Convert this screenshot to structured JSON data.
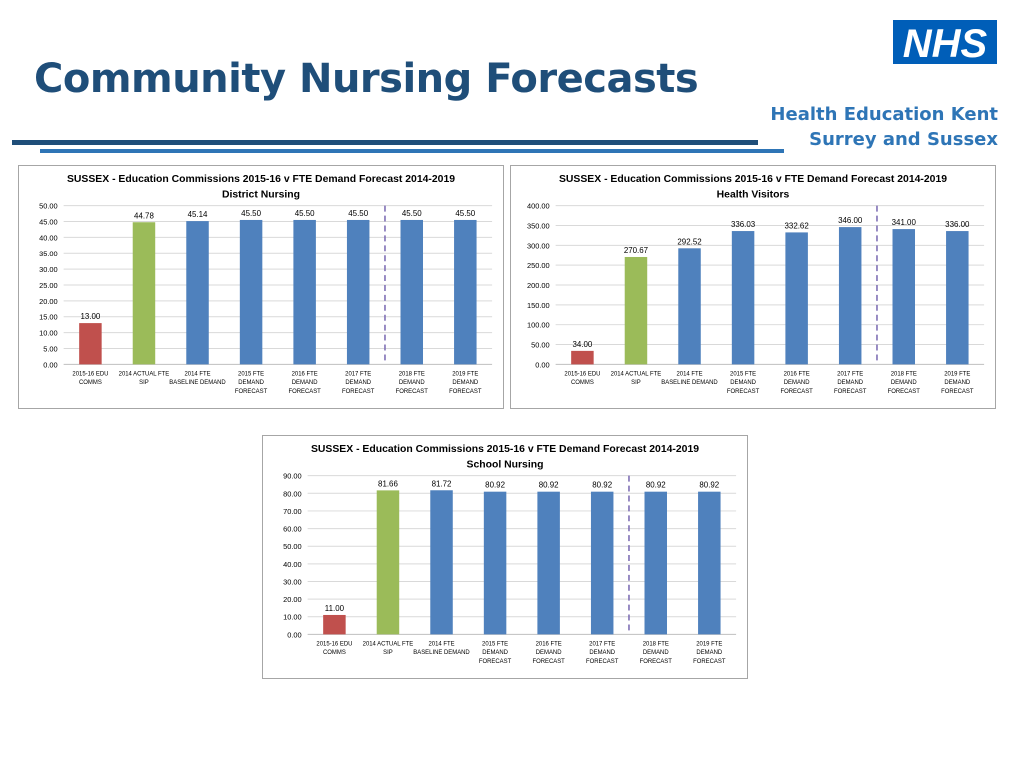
{
  "page": {
    "title": "Community Nursing Forecasts",
    "logo_text": "NHS",
    "org_line1": "Health Education Kent",
    "org_line2": "Surrey and Sussex",
    "colors": {
      "title": "#1f4e79",
      "org": "#2e75b6",
      "logo": "#005eb8",
      "rule_dark": "#1f4e79",
      "rule_light": "#2e75b6"
    }
  },
  "chart_data": [
    {
      "type": "bar",
      "title": "SUSSEX - Education Commissions 2015-16 v FTE Demand Forecast 2014-2019",
      "subtitle": "District Nursing",
      "categories": [
        [
          "2015-16 EDU",
          "COMMS"
        ],
        [
          "2014 ACTUAL FTE",
          "SIP"
        ],
        [
          "2014 FTE",
          "BASELINE DEMAND"
        ],
        [
          "2015 FTE",
          "DEMAND",
          "FORECAST"
        ],
        [
          "2016 FTE",
          "DEMAND",
          "FORECAST"
        ],
        [
          "2017 FTE",
          "DEMAND",
          "FORECAST"
        ],
        [
          "2018 FTE",
          "DEMAND",
          "FORECAST"
        ],
        [
          "2019 FTE",
          "DEMAND",
          "FORECAST"
        ]
      ],
      "values": [
        13.0,
        44.78,
        45.14,
        45.5,
        45.5,
        45.5,
        45.5,
        45.5
      ],
      "value_labels": [
        "13.00",
        "44.78",
        "45.14",
        "45.50",
        "45.50",
        "45.50",
        "45.50",
        "45.50"
      ],
      "colors": [
        "#c0504d",
        "#9bbb59",
        "#4f81bd",
        "#4f81bd",
        "#4f81bd",
        "#4f81bd",
        "#4f81bd",
        "#4f81bd"
      ],
      "ylim": [
        0,
        50
      ],
      "yticks": [
        "0.00",
        "5.00",
        "10.00",
        "15.00",
        "20.00",
        "25.00",
        "30.00",
        "35.00",
        "40.00",
        "45.00",
        "50.00"
      ],
      "ytick_values": [
        0,
        5,
        10,
        15,
        20,
        25,
        30,
        35,
        40,
        45,
        50
      ],
      "divider_after_index": 5,
      "divider_color": "#7f6fb5",
      "grid": true,
      "legend": "none"
    },
    {
      "type": "bar",
      "title": "SUSSEX - Education Commissions 2015-16 v FTE Demand Forecast 2014-2019",
      "subtitle": "Health Visitors",
      "categories": [
        [
          "2015-16 EDU",
          "COMMS"
        ],
        [
          "2014 ACTUAL FTE",
          "SIP"
        ],
        [
          "2014 FTE",
          "BASELINE DEMAND"
        ],
        [
          "2015 FTE",
          "DEMAND",
          "FORECAST"
        ],
        [
          "2016 FTE",
          "DEMAND",
          "FORECAST"
        ],
        [
          "2017 FTE",
          "DEMAND",
          "FORECAST"
        ],
        [
          "2018 FTE",
          "DEMAND",
          "FORECAST"
        ],
        [
          "2019 FTE",
          "DEMAND",
          "FORECAST"
        ]
      ],
      "values": [
        34.0,
        270.67,
        292.52,
        336.03,
        332.62,
        346.0,
        341.0,
        336.0
      ],
      "value_labels": [
        "34.00",
        "270.67",
        "292.52",
        "336.03",
        "332.62",
        "346.00",
        "341.00",
        "336.00"
      ],
      "colors": [
        "#c0504d",
        "#9bbb59",
        "#4f81bd",
        "#4f81bd",
        "#4f81bd",
        "#4f81bd",
        "#4f81bd",
        "#4f81bd"
      ],
      "ylim": [
        0,
        400
      ],
      "yticks": [
        "0.00",
        "50.00",
        "100.00",
        "150.00",
        "200.00",
        "250.00",
        "300.00",
        "350.00",
        "400.00"
      ],
      "ytick_values": [
        0,
        50,
        100,
        150,
        200,
        250,
        300,
        350,
        400
      ],
      "divider_after_index": 5,
      "divider_color": "#7f6fb5",
      "grid": true,
      "legend": "none"
    },
    {
      "type": "bar",
      "title": "SUSSEX - Education Commissions 2015-16 v FTE Demand Forecast 2014-2019",
      "subtitle": "School Nursing",
      "categories": [
        [
          "2015-16 EDU",
          "COMMS"
        ],
        [
          "2014 ACTUAL FTE",
          "SIP"
        ],
        [
          "2014 FTE",
          "BASELINE DEMAND"
        ],
        [
          "2015 FTE",
          "DEMAND",
          "FORECAST"
        ],
        [
          "2016 FTE",
          "DEMAND",
          "FORECAST"
        ],
        [
          "2017 FTE",
          "DEMAND",
          "FORECAST"
        ],
        [
          "2018 FTE",
          "DEMAND",
          "FORECAST"
        ],
        [
          "2019 FTE",
          "DEMAND",
          "FORECAST"
        ]
      ],
      "values": [
        11.0,
        81.66,
        81.72,
        80.92,
        80.92,
        80.92,
        80.92,
        80.92
      ],
      "value_labels": [
        "11.00",
        "81.66",
        "81.72",
        "80.92",
        "80.92",
        "80.92",
        "80.92",
        "80.92"
      ],
      "colors": [
        "#c0504d",
        "#9bbb59",
        "#4f81bd",
        "#4f81bd",
        "#4f81bd",
        "#4f81bd",
        "#4f81bd",
        "#4f81bd"
      ],
      "ylim": [
        0,
        90
      ],
      "yticks": [
        "0.00",
        "10.00",
        "20.00",
        "30.00",
        "40.00",
        "50.00",
        "60.00",
        "70.00",
        "80.00",
        "90.00"
      ],
      "ytick_values": [
        0,
        10,
        20,
        30,
        40,
        50,
        60,
        70,
        80,
        90
      ],
      "divider_after_index": 5,
      "divider_color": "#7f6fb5",
      "grid": true,
      "legend": "none"
    }
  ]
}
